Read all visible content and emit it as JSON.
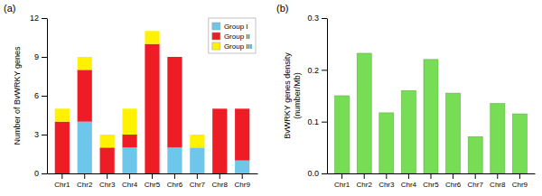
{
  "chart_data": [
    {
      "type": "bar",
      "title": "(a)",
      "stacked": true,
      "legend": "upper right",
      "categories": [
        "Chr1",
        "Chr2",
        "Chr3",
        "Chr4",
        "Chr5",
        "Chr6",
        "Chr7",
        "Chr8",
        "Chr9"
      ],
      "series": [
        {
          "name": "Group I",
          "color": "#6EC6EA",
          "values": [
            0,
            4,
            0,
            2,
            0,
            2,
            2,
            0,
            1
          ]
        },
        {
          "name": "Group II",
          "color": "#EE1C25",
          "values": [
            4,
            4,
            2,
            1,
            10,
            7,
            0,
            5,
            4
          ]
        },
        {
          "name": "Group III",
          "color": "#FFF200",
          "values": [
            1,
            1,
            1,
            2,
            1,
            0,
            1,
            0,
            0
          ]
        }
      ],
      "y_label": "Number of BvWRKY genes",
      "ylim": [
        0,
        12
      ],
      "yticks": [
        0,
        3,
        6,
        9,
        12
      ]
    },
    {
      "type": "bar",
      "title": "(b)",
      "categories": [
        "Chr1",
        "Chr2",
        "Chr3",
        "Chr4",
        "Chr5",
        "Chr6",
        "Chr7",
        "Chr8",
        "Chr9"
      ],
      "values": [
        0.15,
        0.232,
        0.117,
        0.16,
        0.22,
        0.155,
        0.071,
        0.135,
        0.115
      ],
      "color": "#77DD55",
      "y_label": "BvWRKY genes density\n(number/Mb)",
      "ylim": [
        0,
        0.3
      ],
      "yticks": [
        {
          "value": 0,
          "label": "0.0"
        },
        0.1,
        0.2,
        0.3
      ]
    }
  ]
}
